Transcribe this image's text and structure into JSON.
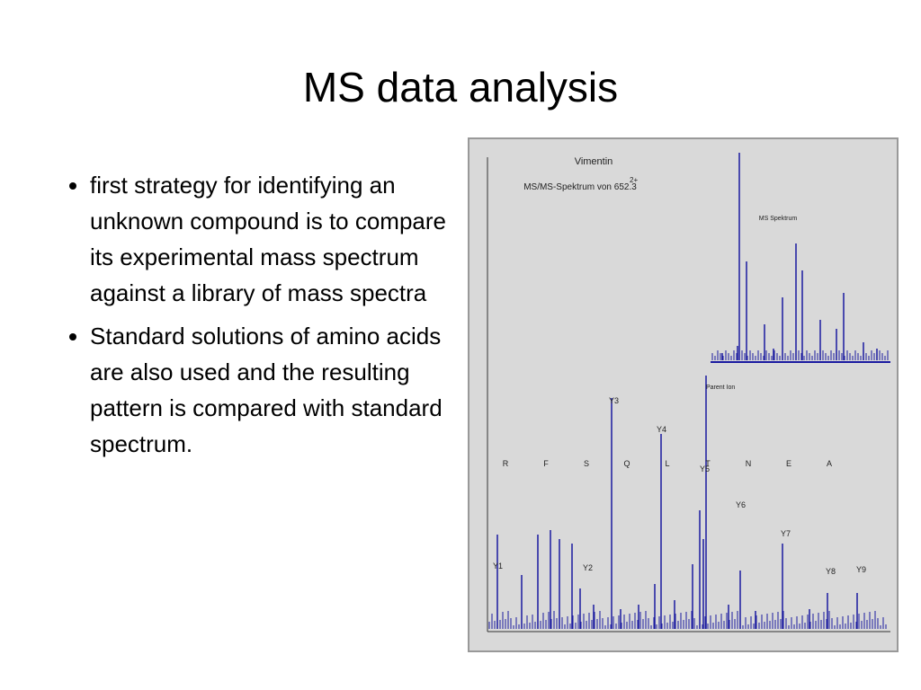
{
  "title": "MS data analysis",
  "bullets": [
    "first strategy for identifying an unknown compound is to compare its experimental mass spectrum against a library of mass spectra",
    " Standard solutions of amino acids are also used and the resulting pattern is compared with standard spectrum."
  ],
  "figure": {
    "title": "Vimentin",
    "subtitle": "MS/MS-Spektrum von 652.3",
    "charge": "2+",
    "inset_label": "MS Spektrum",
    "parent_label": "Parent Ion",
    "sequence": [
      "R",
      "F",
      "S",
      "Q",
      "L",
      "T",
      "N",
      "E",
      "A"
    ],
    "ion_labels": [
      "Y3",
      "Y4",
      "Y5",
      "Y6",
      "Y7",
      "Y8",
      "Y9",
      "Y1",
      "Y2"
    ]
  }
}
